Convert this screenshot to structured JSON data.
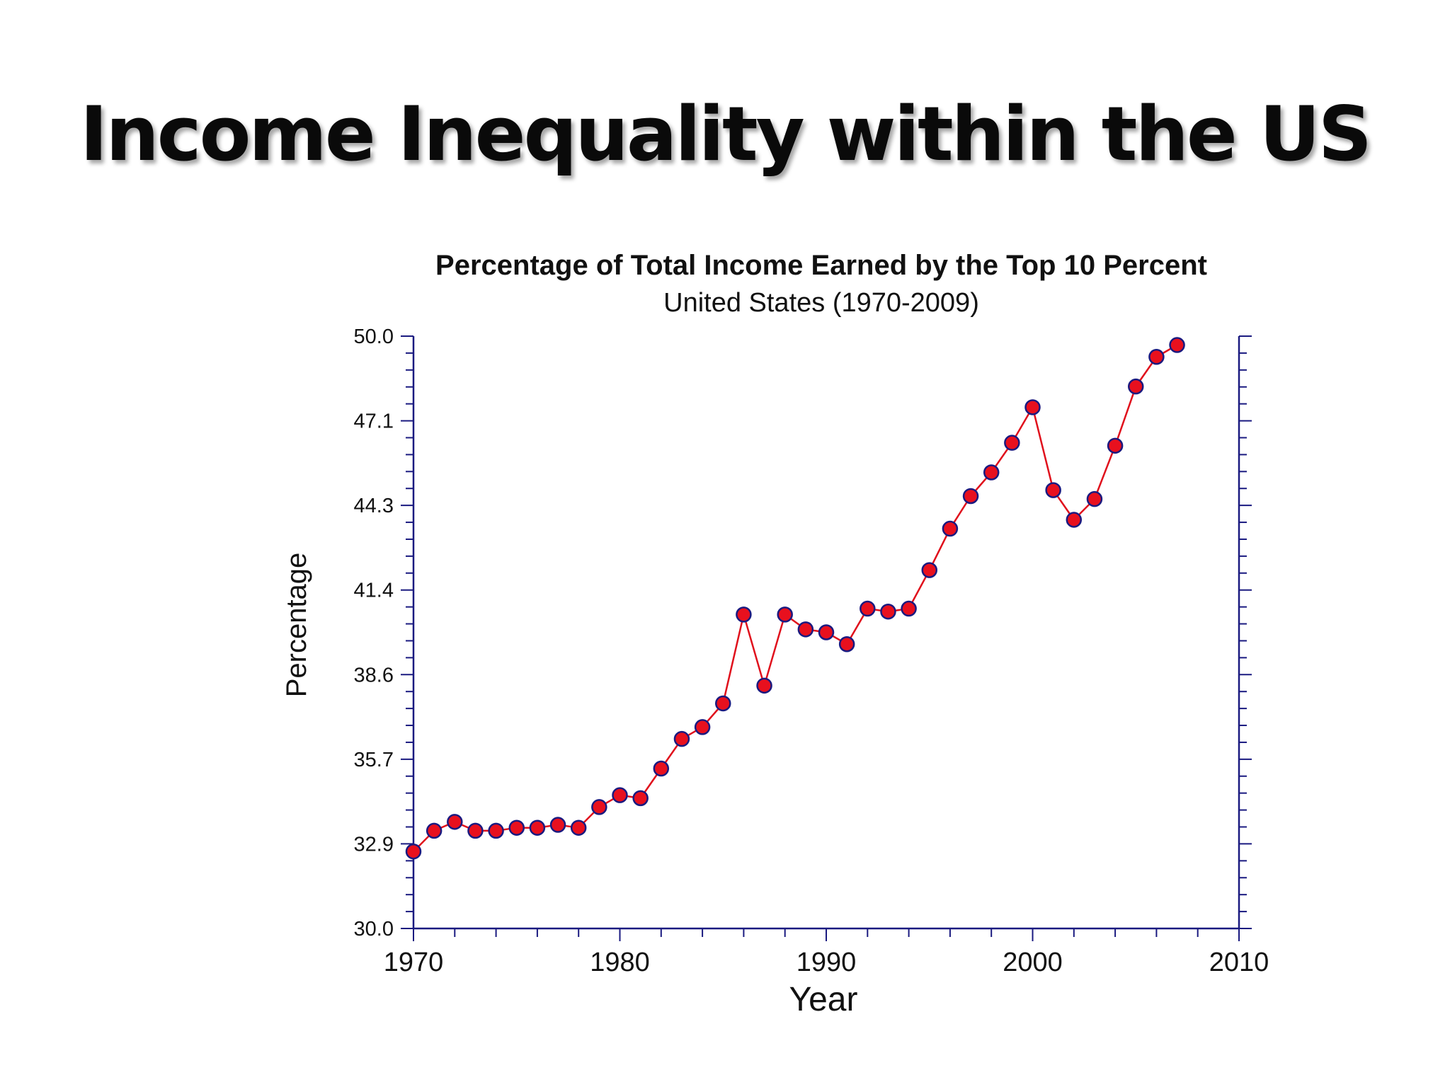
{
  "slide": {
    "title": "Income Inequality within the US"
  },
  "chart_data": {
    "type": "line",
    "title": "Percentage of Total Income Earned by the Top 10 Percent",
    "subtitle": "United States (1970-2009)",
    "xlabel": "Year",
    "ylabel": "Percentage",
    "xlim": [
      1970,
      2010
    ],
    "ylim": [
      30.0,
      50.0
    ],
    "x_ticks": [
      1970,
      1980,
      1990,
      2000,
      2010
    ],
    "y_ticks": [
      "30.0",
      "32.9",
      "35.7",
      "38.6",
      "41.4",
      "44.3",
      "47.1",
      "50.0"
    ],
    "grid": false,
    "legend": "none",
    "line_color": "#e0101c",
    "marker_fill": "#e8101e",
    "marker_edge": "#1a1a80",
    "axis_color": "#1a1a80",
    "series": [
      {
        "x": [
          1970,
          1971,
          1972,
          1973,
          1974,
          1975,
          1976,
          1977,
          1978,
          1979,
          1980,
          1981,
          1982,
          1983,
          1984,
          1985,
          1986,
          1987,
          1988,
          1989,
          1990,
          1991,
          1992,
          1993,
          1994,
          1995,
          1996,
          1997,
          1998,
          1999,
          2000,
          2001,
          2002,
          2003,
          2004,
          2005,
          2006,
          2007
        ],
        "values": [
          32.6,
          33.3,
          33.6,
          33.3,
          33.3,
          33.4,
          33.4,
          33.5,
          33.4,
          34.1,
          34.5,
          34.4,
          35.4,
          36.4,
          36.8,
          37.6,
          40.6,
          38.2,
          40.6,
          40.1,
          40.0,
          39.6,
          40.8,
          40.7,
          40.8,
          42.1,
          43.5,
          44.6,
          45.4,
          46.4,
          47.6,
          44.8,
          43.8,
          44.5,
          46.3,
          48.3,
          49.3,
          49.7
        ]
      }
    ]
  }
}
